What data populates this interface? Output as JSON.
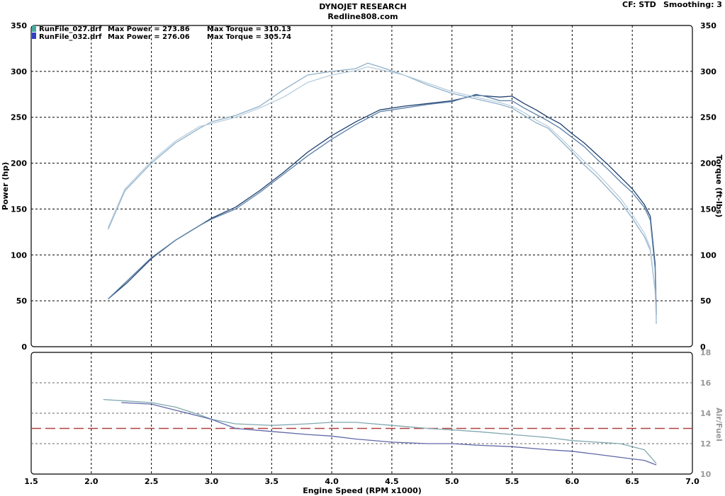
{
  "header": {
    "title": "DYNOJET RESEARCH",
    "subtitle": "Redline808.com",
    "cf_label": "CF: STD",
    "smoothing_label": "Smoothing: 3"
  },
  "legend": [
    {
      "name": "RunFile_027.drf",
      "power_label": "Max Power = 273.86",
      "torque_label": "Max Torque = 310.13",
      "color": "#4aa8a0"
    },
    {
      "name": "RunFile_032.drf",
      "power_label": "Max Power = 276.06",
      "torque_label": "Max Torque = 305.74",
      "color": "#3040c0"
    }
  ],
  "colors": {
    "run027_power": "#1f3f6e",
    "run032_power": "#5b80a8",
    "run027_torque": "#8fb0c8",
    "run032_torque": "#b8cede",
    "afr_run027": "#7fa8b0",
    "afr_run032": "#6068a8",
    "target": "#b04040"
  },
  "chart_data": [
    {
      "type": "line",
      "name": "power-torque",
      "xlabel": "Engine Speed (RPM x1000)",
      "ylabel": "Power (hp)",
      "ylabel_right": "Torque (ft-lbs)",
      "xlim": [
        1.5,
        7.0
      ],
      "ylim": [
        0,
        350
      ],
      "x_ticks": [
        1.5,
        2.0,
        2.5,
        3.0,
        3.5,
        4.0,
        4.5,
        5.0,
        5.5,
        6.0,
        6.5,
        7.0
      ],
      "x_tick_labels": [
        "1.5",
        "2.0",
        "2.5",
        "3.0",
        "3.5",
        "4.0",
        "4.5",
        "5.0",
        "5.5",
        "6.0",
        "6.5",
        "7.0"
      ],
      "y_ticks": [
        0,
        50,
        100,
        150,
        200,
        250,
        300,
        350
      ],
      "y_tick_labels": [
        "0",
        "50",
        "100",
        "150",
        "200",
        "250",
        "300",
        "350"
      ],
      "grid": true,
      "series": [
        {
          "key": "run027_power",
          "x": [
            2.14,
            2.3,
            2.5,
            2.7,
            2.9,
            3.0,
            3.2,
            3.4,
            3.6,
            3.8,
            4.0,
            4.2,
            4.4,
            4.6,
            4.8,
            5.0,
            5.2,
            5.3,
            5.4,
            5.5,
            5.6,
            5.7,
            5.8,
            5.9,
            6.0,
            6.1,
            6.2,
            6.3,
            6.4,
            6.5,
            6.6,
            6.65,
            6.69,
            6.7
          ],
          "y": [
            52,
            70,
            96,
            116,
            132,
            140,
            152,
            170,
            190,
            212,
            230,
            245,
            258,
            262,
            265,
            268,
            274,
            273,
            272,
            273,
            265,
            258,
            250,
            243,
            232,
            222,
            210,
            198,
            185,
            172,
            155,
            142,
            90,
            35
          ]
        },
        {
          "key": "run032_power",
          "x": [
            2.14,
            2.3,
            2.5,
            2.7,
            2.9,
            3.0,
            3.2,
            3.4,
            3.6,
            3.8,
            4.0,
            4.2,
            4.4,
            4.6,
            4.8,
            5.0,
            5.2,
            5.3,
            5.4,
            5.5,
            5.6,
            5.7,
            5.8,
            5.9,
            6.0,
            6.1,
            6.2,
            6.3,
            6.4,
            6.5,
            6.6,
            6.65,
            6.69,
            6.7
          ],
          "y": [
            52,
            72,
            97,
            116,
            132,
            139,
            150,
            168,
            188,
            208,
            226,
            242,
            256,
            260,
            264,
            267,
            275,
            272,
            268,
            268,
            260,
            253,
            246,
            238,
            228,
            218,
            205,
            193,
            180,
            168,
            152,
            138,
            85,
            30
          ]
        },
        {
          "key": "run027_torque",
          "x": [
            2.14,
            2.28,
            2.5,
            2.7,
            2.9,
            3.0,
            3.2,
            3.4,
            3.6,
            3.8,
            4.0,
            4.2,
            4.3,
            4.4,
            4.6,
            4.8,
            5.0,
            5.2,
            5.4,
            5.5,
            5.6,
            5.7,
            5.8,
            5.9,
            6.0,
            6.1,
            6.2,
            6.3,
            6.4,
            6.5,
            6.6,
            6.65,
            6.69,
            6.7
          ],
          "y": [
            128,
            170,
            200,
            222,
            238,
            245,
            252,
            262,
            280,
            296,
            300,
            303,
            309,
            305,
            296,
            285,
            276,
            270,
            264,
            260,
            252,
            244,
            238,
            225,
            212,
            198,
            186,
            172,
            158,
            140,
            120,
            105,
            60,
            25
          ]
        },
        {
          "key": "run032_torque",
          "x": [
            2.14,
            2.28,
            2.5,
            2.7,
            2.9,
            3.0,
            3.2,
            3.4,
            3.6,
            3.8,
            4.0,
            4.2,
            4.3,
            4.4,
            4.6,
            4.8,
            5.0,
            5.2,
            5.4,
            5.5,
            5.6,
            5.7,
            5.8,
            5.9,
            6.0,
            6.1,
            6.2,
            6.3,
            6.4,
            6.5,
            6.6,
            6.65,
            6.69,
            6.7
          ],
          "y": [
            130,
            172,
            202,
            224,
            240,
            243,
            250,
            260,
            272,
            288,
            296,
            301,
            305,
            302,
            296,
            287,
            278,
            272,
            266,
            262,
            255,
            247,
            240,
            228,
            215,
            202,
            190,
            176,
            162,
            144,
            124,
            108,
            62,
            28
          ]
        }
      ]
    },
    {
      "type": "line",
      "name": "air-fuel",
      "ylabel": "Air/Fuel",
      "xlim": [
        1.5,
        7.0
      ],
      "ylim": [
        10,
        18
      ],
      "y_ticks": [
        10,
        12,
        14,
        16,
        18
      ],
      "y_tick_labels": [
        "10",
        "12",
        "14",
        "16",
        "18"
      ],
      "target": 13.0,
      "grid": true,
      "series": [
        {
          "key": "afr_run027",
          "x": [
            2.1,
            2.3,
            2.5,
            2.7,
            2.9,
            3.0,
            3.2,
            3.5,
            3.8,
            4.0,
            4.2,
            4.5,
            4.8,
            5.0,
            5.2,
            5.5,
            5.8,
            6.0,
            6.2,
            6.4,
            6.6,
            6.7
          ],
          "y": [
            14.9,
            14.8,
            14.7,
            14.4,
            13.9,
            13.6,
            13.3,
            13.2,
            13.3,
            13.4,
            13.4,
            13.2,
            13.0,
            12.9,
            12.8,
            12.6,
            12.4,
            12.2,
            12.1,
            12.0,
            11.6,
            10.7
          ]
        },
        {
          "key": "afr_run032",
          "x": [
            2.25,
            2.5,
            2.7,
            2.9,
            3.0,
            3.2,
            3.5,
            3.8,
            4.0,
            4.2,
            4.5,
            4.8,
            5.0,
            5.2,
            5.5,
            5.8,
            6.0,
            6.2,
            6.4,
            6.6,
            6.7
          ],
          "y": [
            14.7,
            14.6,
            14.2,
            13.8,
            13.6,
            13.0,
            12.8,
            12.6,
            12.5,
            12.3,
            12.1,
            12.0,
            12.0,
            11.9,
            11.8,
            11.6,
            11.5,
            11.3,
            11.1,
            10.9,
            10.6
          ]
        }
      ]
    }
  ]
}
